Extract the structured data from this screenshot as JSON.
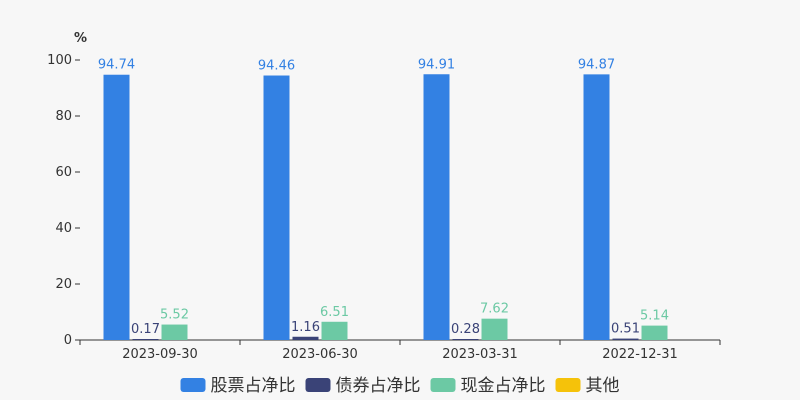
{
  "chart_data": {
    "type": "bar",
    "unit": "%",
    "categories": [
      "2023-09-30",
      "2023-06-30",
      "2023-03-31",
      "2022-12-31"
    ],
    "series": [
      {
        "name": "股票占净比",
        "color": "#3381e3",
        "values": [
          94.74,
          94.46,
          94.91,
          94.87
        ]
      },
      {
        "name": "债券占净比",
        "color": "#3a4377",
        "values": [
          0.17,
          1.16,
          0.28,
          0.51
        ]
      },
      {
        "name": "现金占净比",
        "color": "#6cc9a4",
        "values": [
          5.52,
          6.51,
          7.62,
          5.14
        ]
      },
      {
        "name": "其他",
        "color": "#f5c20a",
        "values": [
          null,
          null,
          null,
          null
        ]
      }
    ],
    "ylim": [
      0,
      100
    ],
    "yticks": [
      0,
      20,
      40,
      60,
      80,
      100
    ],
    "legend_position": "bottom",
    "grid": false
  }
}
